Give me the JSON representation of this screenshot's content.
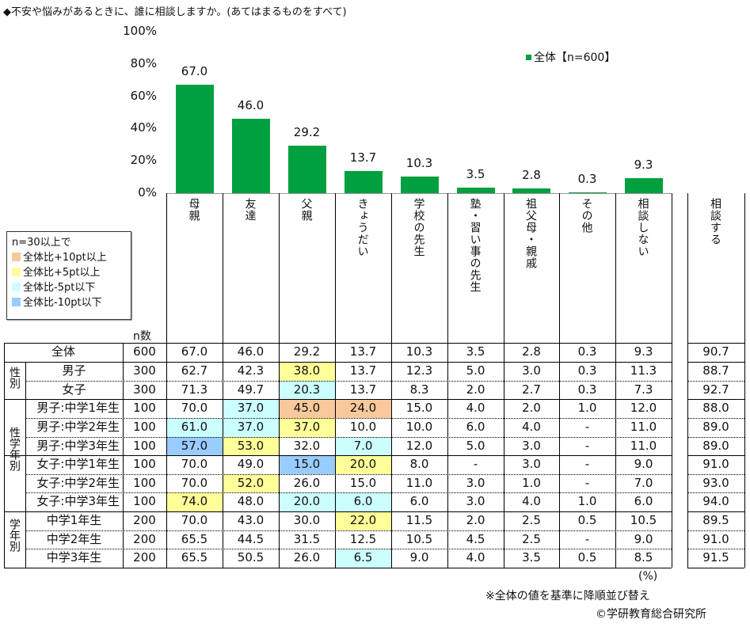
{
  "title": "◆不安や悩みがあるときに、誰に相談しますか。(あてはまるものをすべて)",
  "chart_data": {
    "type": "bar",
    "title": "不安や悩みがあるときに、誰に相談しますか。",
    "categories": [
      "母親",
      "友達",
      "父親",
      "きょうだい",
      "学校の先生",
      "塾・習い事の先生",
      "祖父母・親戚",
      "その他",
      "相談しない"
    ],
    "series": [
      {
        "name": "全体【n=600】",
        "values": [
          67.0,
          46.0,
          29.2,
          13.7,
          10.3,
          3.5,
          2.8,
          0.3,
          9.3
        ]
      }
    ],
    "value_labels": [
      "67.0",
      "46.0",
      "29.2",
      "13.7",
      "10.3",
      "3.5",
      "2.8",
      "0.3",
      "9.3"
    ],
    "yticks": [
      "0%",
      "20%",
      "40%",
      "60%",
      "80%",
      "100%"
    ],
    "ylim": [
      0,
      100
    ],
    "ylabel": "",
    "xlabel": "",
    "legend": "top-right",
    "color": "#00A040"
  },
  "table": {
    "extra_header": "相談する",
    "n_header": "n数",
    "unit": "(%)",
    "highlight_colors": {
      "o": "#F9C89B",
      "y": "#FFFF99",
      "c": "#CCFFFF",
      "b": "#99CCFF"
    },
    "legend": {
      "title": "n=30以上で",
      "items": [
        {
          "key": "o",
          "label": "全体比+10pt以上"
        },
        {
          "key": "y",
          "label": "全体比+5pt以上"
        },
        {
          "key": "c",
          "label": "全体比-5pt以下"
        },
        {
          "key": "b",
          "label": "全体比-10pt以下"
        }
      ]
    },
    "groups": [
      {
        "label": "性別"
      },
      {
        "label": "性学年別"
      },
      {
        "label": "学年別"
      }
    ],
    "rows": [
      {
        "label": "全体",
        "n": "600",
        "values": [
          "67.0",
          "46.0",
          "29.2",
          "13.7",
          "10.3",
          "3.5",
          "2.8",
          "0.3",
          "9.3",
          "90.7"
        ],
        "hl": {}
      },
      {
        "label": "男子",
        "n": "300",
        "values": [
          "62.7",
          "42.3",
          "38.0",
          "13.7",
          "12.3",
          "5.0",
          "3.0",
          "0.3",
          "11.3",
          "88.7"
        ],
        "hl": {
          "2": "y"
        }
      },
      {
        "label": "女子",
        "n": "300",
        "values": [
          "71.3",
          "49.7",
          "20.3",
          "13.7",
          "8.3",
          "2.0",
          "2.7",
          "0.3",
          "7.3",
          "92.7"
        ],
        "hl": {
          "2": "c"
        }
      },
      {
        "label": "男子:中学1年生",
        "n": "100",
        "values": [
          "70.0",
          "37.0",
          "45.0",
          "24.0",
          "15.0",
          "4.0",
          "2.0",
          "1.0",
          "12.0",
          "88.0"
        ],
        "hl": {
          "1": "c",
          "2": "o",
          "3": "o"
        }
      },
      {
        "label": "男子:中学2年生",
        "n": "100",
        "values": [
          "61.0",
          "37.0",
          "37.0",
          "10.0",
          "10.0",
          "6.0",
          "4.0",
          "-",
          "11.0",
          "89.0"
        ],
        "hl": {
          "0": "c",
          "1": "c",
          "2": "y"
        }
      },
      {
        "label": "男子:中学3年生",
        "n": "100",
        "values": [
          "57.0",
          "53.0",
          "32.0",
          "7.0",
          "12.0",
          "5.0",
          "3.0",
          "-",
          "11.0",
          "89.0"
        ],
        "hl": {
          "0": "b",
          "1": "y",
          "3": "c"
        }
      },
      {
        "label": "女子:中学1年生",
        "n": "100",
        "values": [
          "70.0",
          "49.0",
          "15.0",
          "20.0",
          "8.0",
          "-",
          "3.0",
          "-",
          "9.0",
          "91.0"
        ],
        "hl": {
          "2": "b",
          "3": "y"
        }
      },
      {
        "label": "女子:中学2年生",
        "n": "100",
        "values": [
          "70.0",
          "52.0",
          "26.0",
          "15.0",
          "11.0",
          "3.0",
          "1.0",
          "-",
          "7.0",
          "93.0"
        ],
        "hl": {
          "1": "y"
        }
      },
      {
        "label": "女子:中学3年生",
        "n": "100",
        "values": [
          "74.0",
          "48.0",
          "20.0",
          "6.0",
          "6.0",
          "3.0",
          "4.0",
          "1.0",
          "6.0",
          "94.0"
        ],
        "hl": {
          "0": "y",
          "2": "c",
          "3": "c"
        }
      },
      {
        "label": "中学1年生",
        "n": "200",
        "values": [
          "70.0",
          "43.0",
          "30.0",
          "22.0",
          "11.5",
          "2.0",
          "2.5",
          "0.5",
          "10.5",
          "89.5"
        ],
        "hl": {
          "3": "y"
        }
      },
      {
        "label": "中学2年生",
        "n": "200",
        "values": [
          "65.5",
          "44.5",
          "31.5",
          "12.5",
          "10.5",
          "4.5",
          "2.5",
          "-",
          "9.0",
          "91.0"
        ],
        "hl": {}
      },
      {
        "label": "中学3年生",
        "n": "200",
        "values": [
          "65.5",
          "50.5",
          "26.0",
          "6.5",
          "9.0",
          "4.0",
          "3.5",
          "0.5",
          "8.5",
          "91.5"
        ],
        "hl": {
          "3": "c"
        }
      }
    ]
  },
  "footnote": "※全体の値を基準に降順並び替え",
  "copyright": "©学研教育総合研究所"
}
